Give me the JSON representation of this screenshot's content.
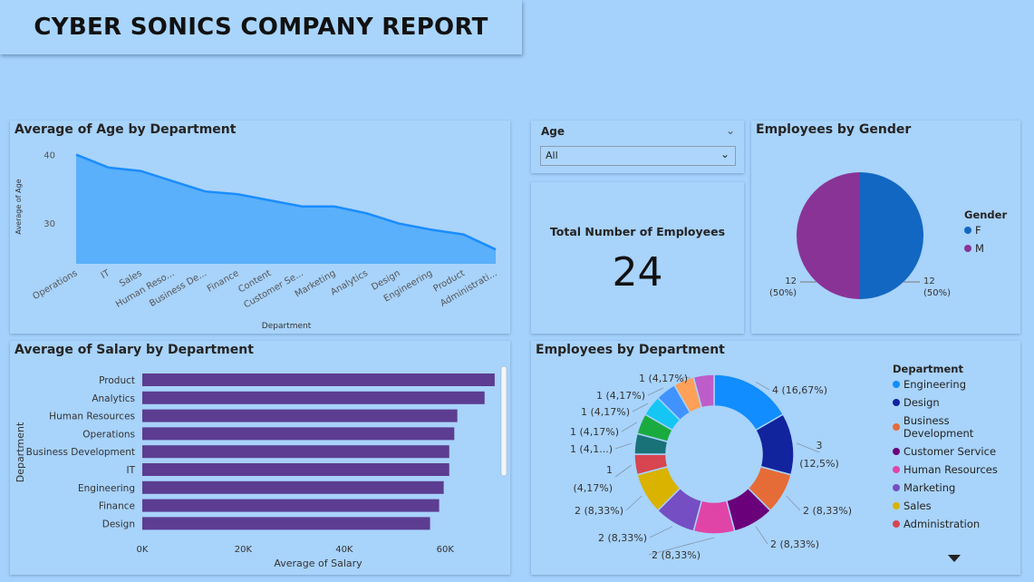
{
  "report": {
    "title": "CYBER SONICS COMPANY REPORT"
  },
  "colors": {
    "background": "#a5d2fc",
    "area": "#5ab0fa",
    "area_line": "#1a8cff",
    "bar": "#5c3d91",
    "female": "#1267c2",
    "male": "#8a3396"
  },
  "age_chart": {
    "title": "Average of Age by Department",
    "chart_data": {
      "type": "area",
      "title": "Average of Age by Department",
      "xlabel": "Department",
      "ylabel": "Average of Age",
      "categories": [
        "Operations",
        "IT",
        "Sales",
        "Human Reso...",
        "Business De...",
        "Finance",
        "Content",
        "Customer Se...",
        "Marketing",
        "Analytics",
        "Design",
        "Engineering",
        "Product",
        "Administrati..."
      ],
      "values": [
        40.0,
        38.1,
        37.6,
        36.1,
        34.6,
        34.2,
        33.3,
        32.4,
        32.4,
        31.4,
        29.9,
        29.0,
        28.3,
        26.1
      ],
      "yticks": [
        40,
        30
      ],
      "ylim": [
        24,
        41
      ],
      "grid": false
    }
  },
  "age_slicer": {
    "label": "Age",
    "value": "All"
  },
  "kpi": {
    "label": "Total Number of Employees",
    "value": "24"
  },
  "gender_chart": {
    "title": "Employees by Gender",
    "chart_data": {
      "type": "pie",
      "title": "Employees by Gender",
      "slices": [
        {
          "name": "F",
          "value": 12,
          "label_count": "12",
          "label_pct": "(50%)",
          "color": "#1267c2"
        },
        {
          "name": "M",
          "value": 12,
          "label_count": "12",
          "label_pct": "(50%)",
          "color": "#8a3396"
        }
      ],
      "legend_title": "Gender",
      "legend_position": "right"
    }
  },
  "salary_chart": {
    "title": "Average of Salary by Department",
    "chart_data": {
      "type": "bar",
      "orientation": "horizontal",
      "title": "Average of Salary by Department",
      "xlabel": "Average of Salary",
      "ylabel": "Department",
      "categories": [
        "Product",
        "Analytics",
        "Human Resources",
        "Operations",
        "Business Development",
        "IT",
        "Engineering",
        "Finance",
        "Design"
      ],
      "values": [
        69800,
        67800,
        62400,
        61800,
        60800,
        60800,
        59700,
        58800,
        57000
      ],
      "xticks": [
        0,
        20000,
        40000,
        60000
      ],
      "xtick_labels": [
        "0K",
        "20K",
        "40K",
        "60K"
      ],
      "xlim": [
        0,
        70000
      ]
    }
  },
  "dept_chart": {
    "title": "Employees by Department",
    "chart_data": {
      "type": "pie",
      "variant": "donut",
      "title": "Employees by Department",
      "slices": [
        {
          "name": "Engineering",
          "value": 4,
          "label": "4 (16,67%)",
          "color": "#118dff"
        },
        {
          "name": "Design",
          "value": 3,
          "label": "3 (12,5%)",
          "color": "#12239e"
        },
        {
          "name": "Business Development",
          "value": 2,
          "label": "2 (8,33%)",
          "color": "#e66c37"
        },
        {
          "name": "Customer Service",
          "value": 2,
          "label": "2 (8,33%)",
          "color": "#6b007b"
        },
        {
          "name": "Human Resources",
          "value": 2,
          "label": "2 (8,33%)",
          "color": "#e044a7"
        },
        {
          "name": "Marketing",
          "value": 2,
          "label": "2 (8,33%)",
          "color": "#744ec2"
        },
        {
          "name": "Sales",
          "value": 2,
          "label": "2 (8,33%)",
          "color": "#d9b300"
        },
        {
          "name": "Administration",
          "value": 1,
          "label": "1 (4,17%)",
          "color": "#d64550"
        },
        {
          "name": "",
          "value": 1,
          "label": "1 (4,1...)",
          "color": "#197278"
        },
        {
          "name": "",
          "value": 1,
          "label": "1 (4,17%)",
          "color": "#1aab40"
        },
        {
          "name": "",
          "value": 1,
          "label": "1 (4,17%)",
          "color": "#15c6f4"
        },
        {
          "name": "",
          "value": 1,
          "label": "1 (4,17%)",
          "color": "#4092ff"
        },
        {
          "name": "",
          "value": 1,
          "label": "1 (4,17%)",
          "color": "#ffa058"
        },
        {
          "name": "",
          "value": 1,
          "label": "1 (4,17%)",
          "color": "#be5dc9"
        }
      ],
      "legend_title": "Department",
      "legend_position": "right",
      "legend_items": [
        "Engineering",
        "Design",
        "Business Development",
        "Customer Service",
        "Human Resources",
        "Marketing",
        "Sales",
        "Administration"
      ]
    }
  }
}
